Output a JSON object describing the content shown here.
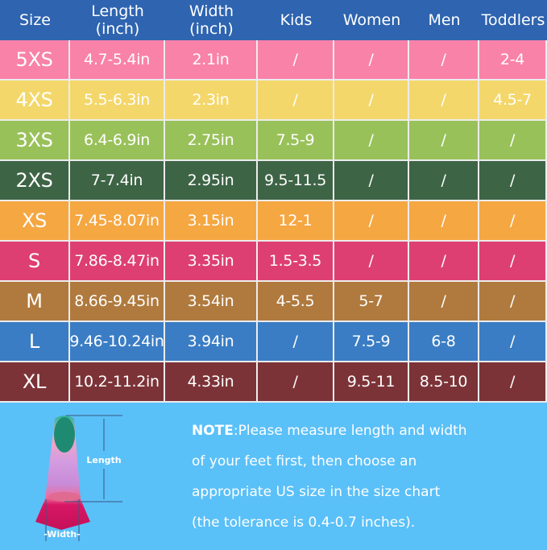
{
  "headers": [
    "Size",
    "Length\n(inch)",
    "Width\n(inch)",
    "Kids",
    "Women",
    "Men",
    "Toddlers"
  ],
  "header_lines": {
    "length": [
      "Length",
      "(inch)"
    ],
    "width": [
      "Width",
      "(inch)"
    ]
  },
  "colors": {
    "header": "#2e64b0",
    "background": "#5ac0f8",
    "rows": [
      "#f982a8",
      "#f4d76a",
      "#99c15a",
      "#3e6446",
      "#f5a742",
      "#de3f73",
      "#b07a3e",
      "#3a7dc4",
      "#7c3337"
    ]
  },
  "rows": [
    [
      "5XS",
      "4.7-5.4in",
      "2.1in",
      "/",
      "/",
      "/",
      "2-4"
    ],
    [
      "4XS",
      "5.5-6.3in",
      "2.3in",
      "/",
      "/",
      "/",
      "4.5-7"
    ],
    [
      "3XS",
      "6.4-6.9in",
      "2.75in",
      "7.5-9",
      "/",
      "/",
      "/"
    ],
    [
      "2XS",
      "7-7.4in",
      "2.95in",
      "9.5-11.5",
      "/",
      "/",
      "/"
    ],
    [
      "XS",
      "7.45-8.07in",
      "3.15in",
      "12-1",
      "/",
      "/",
      "/"
    ],
    [
      "S",
      "7.86-8.47in",
      "3.35in",
      "1.5-3.5",
      "/",
      "/",
      "/"
    ],
    [
      "M",
      "8.66-9.45in",
      "3.54in",
      "4-5.5",
      "5-7",
      "/",
      "/"
    ],
    [
      "L",
      "9.46-10.24in",
      "3.94in",
      "/",
      "7.5-9",
      "6-8",
      "/"
    ],
    [
      "XL",
      "10.2-11.2in",
      "4.33in",
      "/",
      "9.5-11",
      "8.5-10",
      "/"
    ]
  ],
  "diagram": {
    "length_label": "Length",
    "width_label": "-Width-"
  },
  "note": {
    "label": "NOTE",
    "lines": [
      ":Please measure length and width",
      "of your feet first, then choose an",
      "appropriate US size in the size chart",
      "(the tolerance is 0.4-0.7 inches)."
    ]
  }
}
